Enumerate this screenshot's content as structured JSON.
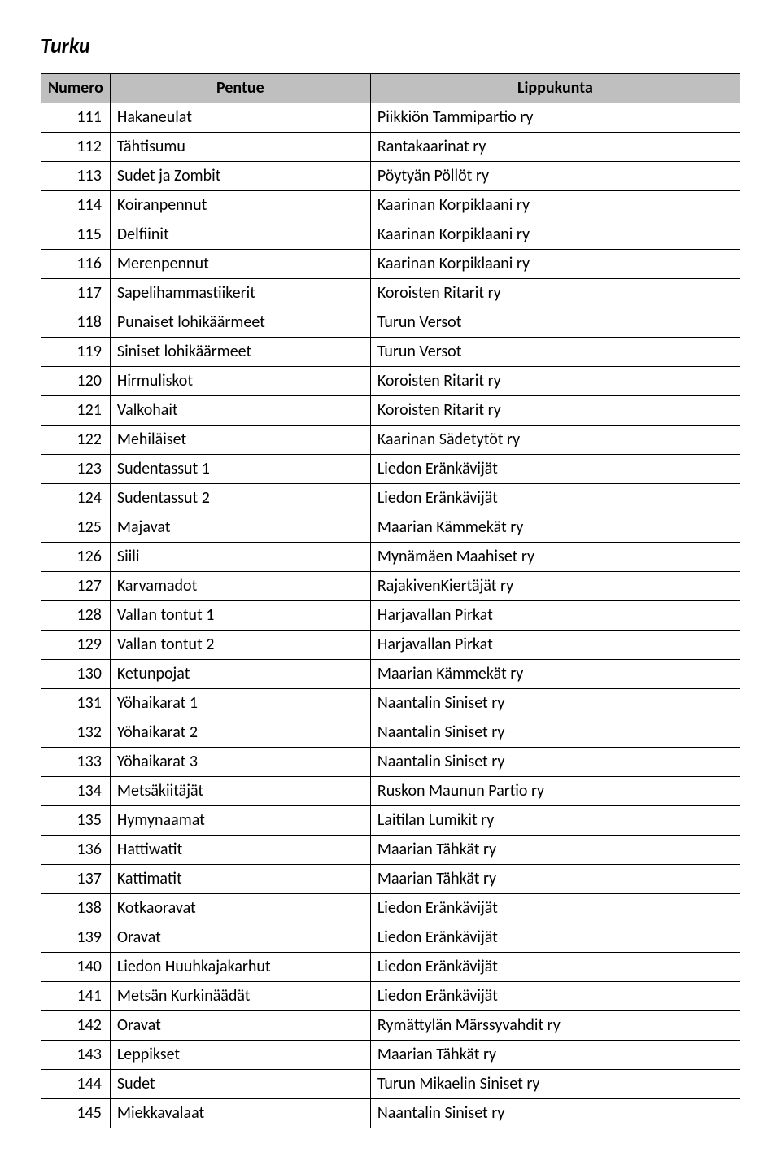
{
  "title": "Turku",
  "columns": [
    "Numero",
    "Pentue",
    "Lippukunta"
  ],
  "rows": [
    [
      "111",
      "Hakaneulat",
      "Piikkiön Tammipartio ry"
    ],
    [
      "112",
      "Tähtisumu",
      "Rantakaarinat ry"
    ],
    [
      "113",
      "Sudet ja Zombit",
      "Pöytyän Pöllöt ry"
    ],
    [
      "114",
      "Koiranpennut",
      "Kaarinan Korpiklaani ry"
    ],
    [
      "115",
      "Delfiinit",
      "Kaarinan Korpiklaani ry"
    ],
    [
      "116",
      "Merenpennut",
      "Kaarinan Korpiklaani ry"
    ],
    [
      "117",
      "Sapelihammastiikerit",
      "Koroisten Ritarit ry"
    ],
    [
      "118",
      "Punaiset lohikäärmeet",
      "Turun Versot"
    ],
    [
      "119",
      "Siniset lohikäärmeet",
      "Turun Versot"
    ],
    [
      "120",
      "Hirmuliskot",
      "Koroisten Ritarit ry"
    ],
    [
      "121",
      "Valkohait",
      "Koroisten Ritarit ry"
    ],
    [
      "122",
      "Mehiläiset",
      "Kaarinan Sädetytöt ry"
    ],
    [
      "123",
      "Sudentassut 1",
      "Liedon Eränkävijät"
    ],
    [
      "124",
      "Sudentassut 2",
      "Liedon Eränkävijät"
    ],
    [
      "125",
      "Majavat",
      "Maarian Kämmekät ry"
    ],
    [
      "126",
      "Siili",
      "Mynämäen Maahiset ry"
    ],
    [
      "127",
      "Karvamadot",
      "RajakivenKiertäjät ry"
    ],
    [
      "128",
      "Vallan tontut 1",
      "Harjavallan Pirkat"
    ],
    [
      "129",
      "Vallan tontut 2",
      "Harjavallan Pirkat"
    ],
    [
      "130",
      "Ketunpojat",
      "Maarian Kämmekät ry"
    ],
    [
      "131",
      "Yöhaikarat 1",
      "Naantalin Siniset ry"
    ],
    [
      "132",
      "Yöhaikarat 2",
      "Naantalin Siniset ry"
    ],
    [
      "133",
      "Yöhaikarat 3",
      "Naantalin Siniset ry"
    ],
    [
      "134",
      "Metsäkiitäjät",
      "Ruskon Maunun Partio ry"
    ],
    [
      "135",
      "Hymynaamat",
      "Laitilan Lumikit ry"
    ],
    [
      "136",
      "Hattiwatit",
      "Maarian Tähkät ry"
    ],
    [
      "137",
      "Kattimatit",
      "Maarian Tähkät ry"
    ],
    [
      "138",
      "Kotkaoravat",
      "Liedon Eränkävijät"
    ],
    [
      "139",
      "Oravat",
      "Liedon Eränkävijät"
    ],
    [
      "140",
      "Liedon Huuhkajakarhut",
      "Liedon Eränkävijät"
    ],
    [
      "141",
      "Metsän Kurkinäädät",
      "Liedon Eränkävijät"
    ],
    [
      "142",
      "Oravat",
      "Rymättylän Märssyvahdit ry"
    ],
    [
      "143",
      "Leppikset",
      "Maarian Tähkät ry"
    ],
    [
      "144",
      "Sudet",
      "Turun Mikaelin Siniset ry"
    ],
    [
      "145",
      "Miekkavalaat",
      "Naantalin Siniset ry"
    ]
  ]
}
